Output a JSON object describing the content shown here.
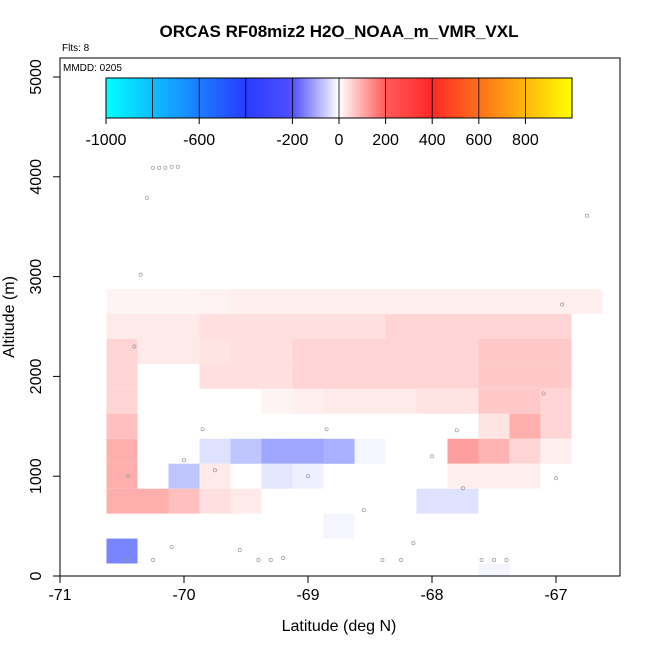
{
  "chart_data": {
    "type": "heatmap",
    "title": "ORCAS RF08miz2 H2O_NOAA_m_VMR_VXL",
    "flights_label": "Flts: 8",
    "date_label": "MMDD: 0205",
    "xlabel": "Latitude (deg N)",
    "ylabel": "Altitude (m)",
    "xlim": [
      -71,
      -66.5
    ],
    "ylim": [
      0,
      5200
    ],
    "xticks": [
      -71,
      -70,
      -69,
      -68,
      -67
    ],
    "yticks": [
      0,
      1000,
      2000,
      3000,
      4000,
      5000
    ],
    "colorbar": {
      "range": [
        -1000,
        1000
      ],
      "ticks": [
        -1000,
        -600,
        -200,
        0,
        200,
        400,
        600,
        800
      ],
      "segment_edges": [
        -1000,
        -800,
        -600,
        -400,
        -200,
        200,
        400,
        600,
        800,
        1000
      ]
    },
    "cell_width_deg": 0.25,
    "cell_height_m": 250,
    "cells": [
      {
        "lon": -70.5,
        "alt": 2750,
        "v": 20
      },
      {
        "lon": -70.25,
        "alt": 2750,
        "v": 20
      },
      {
        "lon": -70.0,
        "alt": 2750,
        "v": 20
      },
      {
        "lon": -69.75,
        "alt": 2750,
        "v": 25
      },
      {
        "lon": -69.5,
        "alt": 2750,
        "v": 30
      },
      {
        "lon": -69.25,
        "alt": 2750,
        "v": 30
      },
      {
        "lon": -69.0,
        "alt": 2750,
        "v": 30
      },
      {
        "lon": -68.75,
        "alt": 2750,
        "v": 30
      },
      {
        "lon": -68.5,
        "alt": 2750,
        "v": 30
      },
      {
        "lon": -68.25,
        "alt": 2750,
        "v": 30
      },
      {
        "lon": -68.0,
        "alt": 2750,
        "v": 30
      },
      {
        "lon": -67.75,
        "alt": 2750,
        "v": 30
      },
      {
        "lon": -67.5,
        "alt": 2750,
        "v": 30
      },
      {
        "lon": -67.25,
        "alt": 2750,
        "v": 30
      },
      {
        "lon": -67.0,
        "alt": 2750,
        "v": 30
      },
      {
        "lon": -66.75,
        "alt": 2750,
        "v": 30
      },
      {
        "lon": -70.5,
        "alt": 2500,
        "v": 40
      },
      {
        "lon": -70.25,
        "alt": 2500,
        "v": 40
      },
      {
        "lon": -70.0,
        "alt": 2500,
        "v": 40
      },
      {
        "lon": -69.75,
        "alt": 2500,
        "v": 60
      },
      {
        "lon": -69.5,
        "alt": 2500,
        "v": 60
      },
      {
        "lon": -69.25,
        "alt": 2500,
        "v": 60
      },
      {
        "lon": -69.0,
        "alt": 2500,
        "v": 60
      },
      {
        "lon": -68.75,
        "alt": 2500,
        "v": 60
      },
      {
        "lon": -68.5,
        "alt": 2500,
        "v": 60
      },
      {
        "lon": -68.25,
        "alt": 2500,
        "v": 80
      },
      {
        "lon": -68.0,
        "alt": 2500,
        "v": 80
      },
      {
        "lon": -67.75,
        "alt": 2500,
        "v": 80
      },
      {
        "lon": -67.5,
        "alt": 2500,
        "v": 80
      },
      {
        "lon": -67.25,
        "alt": 2500,
        "v": 80
      },
      {
        "lon": -67.0,
        "alt": 2500,
        "v": 80
      },
      {
        "lon": -70.5,
        "alt": 2250,
        "v": 80
      },
      {
        "lon": -70.25,
        "alt": 2250,
        "v": 40
      },
      {
        "lon": -70.0,
        "alt": 2250,
        "v": 40
      },
      {
        "lon": -69.75,
        "alt": 2250,
        "v": 50
      },
      {
        "lon": -69.5,
        "alt": 2250,
        "v": 60
      },
      {
        "lon": -69.25,
        "alt": 2250,
        "v": 60
      },
      {
        "lon": -69.0,
        "alt": 2250,
        "v": 80
      },
      {
        "lon": -68.75,
        "alt": 2250,
        "v": 80
      },
      {
        "lon": -68.5,
        "alt": 2250,
        "v": 80
      },
      {
        "lon": -68.25,
        "alt": 2250,
        "v": 80
      },
      {
        "lon": -68.0,
        "alt": 2250,
        "v": 80
      },
      {
        "lon": -67.75,
        "alt": 2250,
        "v": 80
      },
      {
        "lon": -67.5,
        "alt": 2250,
        "v": 100
      },
      {
        "lon": -67.25,
        "alt": 2250,
        "v": 100
      },
      {
        "lon": -67.0,
        "alt": 2250,
        "v": 100
      },
      {
        "lon": -70.5,
        "alt": 2000,
        "v": 80
      },
      {
        "lon": -69.75,
        "alt": 2000,
        "v": 60
      },
      {
        "lon": -69.5,
        "alt": 2000,
        "v": 60
      },
      {
        "lon": -69.25,
        "alt": 2000,
        "v": 60
      },
      {
        "lon": -69.0,
        "alt": 2000,
        "v": 80
      },
      {
        "lon": -68.75,
        "alt": 2000,
        "v": 80
      },
      {
        "lon": -68.5,
        "alt": 2000,
        "v": 80
      },
      {
        "lon": -68.25,
        "alt": 2000,
        "v": 80
      },
      {
        "lon": -68.0,
        "alt": 2000,
        "v": 80
      },
      {
        "lon": -67.75,
        "alt": 2000,
        "v": 80
      },
      {
        "lon": -67.5,
        "alt": 2000,
        "v": 100
      },
      {
        "lon": -67.25,
        "alt": 2000,
        "v": 100
      },
      {
        "lon": -67.0,
        "alt": 2000,
        "v": 100
      },
      {
        "lon": -70.5,
        "alt": 1750,
        "v": 80
      },
      {
        "lon": -69.25,
        "alt": 1750,
        "v": 20
      },
      {
        "lon": -69.0,
        "alt": 1750,
        "v": 30
      },
      {
        "lon": -68.75,
        "alt": 1750,
        "v": 40
      },
      {
        "lon": -68.5,
        "alt": 1750,
        "v": 40
      },
      {
        "lon": -68.25,
        "alt": 1750,
        "v": 40
      },
      {
        "lon": -68.0,
        "alt": 1750,
        "v": 50
      },
      {
        "lon": -67.75,
        "alt": 1750,
        "v": 50
      },
      {
        "lon": -67.5,
        "alt": 1750,
        "v": 100
      },
      {
        "lon": -67.25,
        "alt": 1750,
        "v": 100
      },
      {
        "lon": -67.0,
        "alt": 1750,
        "v": 80
      },
      {
        "lon": -70.5,
        "alt": 1500,
        "v": 120
      },
      {
        "lon": -67.5,
        "alt": 1500,
        "v": 50
      },
      {
        "lon": -67.25,
        "alt": 1500,
        "v": 150
      },
      {
        "lon": -67.0,
        "alt": 1500,
        "v": 80
      },
      {
        "lon": -70.5,
        "alt": 1250,
        "v": 150
      },
      {
        "lon": -69.75,
        "alt": 1250,
        "v": -60
      },
      {
        "lon": -69.5,
        "alt": 1250,
        "v": -120
      },
      {
        "lon": -69.25,
        "alt": 1250,
        "v": -180
      },
      {
        "lon": -69.0,
        "alt": 1250,
        "v": -180
      },
      {
        "lon": -68.75,
        "alt": 1250,
        "v": -160
      },
      {
        "lon": -68.5,
        "alt": 1250,
        "v": -20
      },
      {
        "lon": -67.75,
        "alt": 1250,
        "v": 180
      },
      {
        "lon": -67.5,
        "alt": 1250,
        "v": 140
      },
      {
        "lon": -67.25,
        "alt": 1250,
        "v": 80
      },
      {
        "lon": -67.0,
        "alt": 1250,
        "v": 30
      },
      {
        "lon": -70.5,
        "alt": 1000,
        "v": 150
      },
      {
        "lon": -70.0,
        "alt": 1000,
        "v": -120
      },
      {
        "lon": -69.75,
        "alt": 1000,
        "v": 40
      },
      {
        "lon": -69.25,
        "alt": 1000,
        "v": -50
      },
      {
        "lon": -69.0,
        "alt": 1000,
        "v": -30
      },
      {
        "lon": -67.75,
        "alt": 1000,
        "v": 30
      },
      {
        "lon": -67.5,
        "alt": 1000,
        "v": 30
      },
      {
        "lon": -67.25,
        "alt": 1000,
        "v": 30
      },
      {
        "lon": -70.5,
        "alt": 750,
        "v": 150
      },
      {
        "lon": -70.25,
        "alt": 750,
        "v": 150
      },
      {
        "lon": -70.0,
        "alt": 750,
        "v": 120
      },
      {
        "lon": -69.75,
        "alt": 750,
        "v": 60
      },
      {
        "lon": -69.5,
        "alt": 750,
        "v": 40
      },
      {
        "lon": -68.0,
        "alt": 750,
        "v": -60
      },
      {
        "lon": -67.75,
        "alt": 750,
        "v": -60
      },
      {
        "lon": -68.75,
        "alt": 500,
        "v": -20
      },
      {
        "lon": -70.5,
        "alt": 250,
        "v": -250
      },
      {
        "lon": -67.5,
        "alt": 0,
        "v": -20
      }
    ],
    "points": [
      [
        -70.45,
        160
      ],
      [
        -70.25,
        160
      ],
      [
        -70.1,
        290
      ],
      [
        -70.35,
        3020
      ],
      [
        -70.4,
        2300
      ],
      [
        -70.3,
        3790
      ],
      [
        -70.25,
        4090
      ],
      [
        -70.2,
        4090
      ],
      [
        -70.15,
        4090
      ],
      [
        -70.1,
        4100
      ],
      [
        -70.05,
        4100
      ],
      [
        -69.85,
        1470
      ],
      [
        -70.0,
        1160
      ],
      [
        -70.45,
        1000
      ],
      [
        -69.75,
        1060
      ],
      [
        -69.55,
        260
      ],
      [
        -69.4,
        160
      ],
      [
        -69.3,
        160
      ],
      [
        -69.2,
        180
      ],
      [
        -69.0,
        1000
      ],
      [
        -68.85,
        1470
      ],
      [
        -68.55,
        660
      ],
      [
        -68.4,
        160
      ],
      [
        -68.25,
        160
      ],
      [
        -68.15,
        330
      ],
      [
        -68.0,
        1200
      ],
      [
        -67.8,
        1460
      ],
      [
        -67.75,
        880
      ],
      [
        -67.6,
        160
      ],
      [
        -67.5,
        160
      ],
      [
        -67.4,
        160
      ],
      [
        -67.0,
        980
      ],
      [
        -67.1,
        1830
      ],
      [
        -66.95,
        2720
      ],
      [
        -66.75,
        3610
      ]
    ]
  }
}
